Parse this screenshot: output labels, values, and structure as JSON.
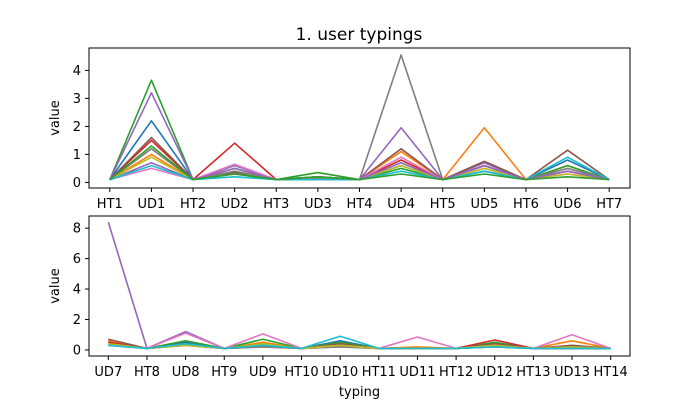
{
  "figure": {
    "title": "1. user typings"
  },
  "chart_data": [
    {
      "type": "line",
      "title": "1. user typings",
      "xlabel": "",
      "ylabel": "value",
      "ylim": [
        -0.2,
        4.8
      ],
      "yticks": [
        0,
        1,
        2,
        3,
        4
      ],
      "categories": [
        "HT1",
        "UD1",
        "HT2",
        "UD2",
        "HT3",
        "UD3",
        "HT4",
        "UD4",
        "HT5",
        "UD5",
        "HT6",
        "UD6",
        "HT7"
      ],
      "series": [
        {
          "color": "#1f77b4",
          "values": [
            0.1,
            2.2,
            0.1,
            0.3,
            0.1,
            0.1,
            0.1,
            0.6,
            0.1,
            0.4,
            0.1,
            0.8,
            0.1
          ]
        },
        {
          "color": "#ff7f0e",
          "values": [
            0.1,
            1.0,
            0.1,
            0.4,
            0.1,
            0.2,
            0.1,
            1.1,
            0.1,
            1.95,
            0.1,
            0.6,
            0.1
          ]
        },
        {
          "color": "#2ca02c",
          "values": [
            0.1,
            3.65,
            0.1,
            0.5,
            0.1,
            0.35,
            0.1,
            0.5,
            0.1,
            0.6,
            0.1,
            0.6,
            0.1
          ]
        },
        {
          "color": "#d62728",
          "values": [
            0.1,
            1.5,
            0.1,
            1.4,
            0.1,
            0.2,
            0.1,
            0.8,
            0.1,
            0.6,
            0.1,
            0.4,
            0.1
          ]
        },
        {
          "color": "#9467bd",
          "values": [
            0.1,
            0.7,
            0.1,
            0.6,
            0.1,
            0.1,
            0.1,
            1.95,
            0.1,
            0.7,
            0.1,
            0.5,
            0.1
          ]
        },
        {
          "color": "#8c564b",
          "values": [
            0.1,
            1.6,
            0.1,
            0.35,
            0.1,
            0.15,
            0.1,
            1.2,
            0.1,
            0.75,
            0.1,
            1.15,
            0.1
          ]
        },
        {
          "color": "#e377c2",
          "values": [
            0.1,
            0.5,
            0.1,
            0.65,
            0.1,
            0.1,
            0.1,
            0.9,
            0.1,
            0.5,
            0.1,
            0.3,
            0.1
          ]
        },
        {
          "color": "#7f7f7f",
          "values": [
            0.1,
            1.2,
            0.1,
            0.4,
            0.1,
            0.15,
            0.1,
            4.55,
            0.1,
            0.6,
            0.1,
            0.5,
            0.1
          ]
        },
        {
          "color": "#bcbd22",
          "values": [
            0.1,
            0.9,
            0.1,
            0.3,
            0.1,
            0.1,
            0.1,
            0.6,
            0.1,
            0.5,
            0.1,
            0.3,
            0.1
          ]
        },
        {
          "color": "#17becf",
          "values": [
            0.1,
            0.6,
            0.1,
            0.2,
            0.1,
            0.1,
            0.1,
            0.4,
            0.1,
            0.4,
            0.1,
            0.9,
            0.1
          ]
        },
        {
          "color": "#9467bd",
          "values": [
            0.1,
            3.2,
            0.1,
            0.5,
            0.1,
            0.2,
            0.1,
            0.7,
            0.1,
            0.6,
            0.1,
            0.4,
            0.1
          ]
        },
        {
          "color": "#2ca02c",
          "values": [
            0.1,
            1.3,
            0.1,
            0.3,
            0.1,
            0.2,
            0.1,
            0.3,
            0.1,
            0.3,
            0.1,
            0.2,
            0.1
          ]
        }
      ]
    },
    {
      "type": "line",
      "title": "",
      "xlabel": "typing",
      "ylabel": "value",
      "ylim": [
        -0.4,
        8.8
      ],
      "yticks": [
        0,
        2,
        4,
        6,
        8
      ],
      "categories": [
        "UD7",
        "HT8",
        "UD8",
        "HT9",
        "UD9",
        "HT10",
        "UD10",
        "HT11",
        "UD11",
        "HT12",
        "UD12",
        "HT13",
        "UD13",
        "HT14"
      ],
      "series": [
        {
          "color": "#1f77b4",
          "values": [
            0.4,
            0.1,
            0.5,
            0.1,
            0.3,
            0.1,
            0.6,
            0.1,
            0.1,
            0.1,
            0.3,
            0.1,
            0.2,
            0.1
          ]
        },
        {
          "color": "#ff7f0e",
          "values": [
            0.6,
            0.1,
            0.4,
            0.1,
            0.5,
            0.1,
            0.4,
            0.1,
            0.2,
            0.1,
            0.4,
            0.1,
            0.6,
            0.1
          ]
        },
        {
          "color": "#2ca02c",
          "values": [
            0.5,
            0.1,
            0.6,
            0.1,
            0.7,
            0.1,
            0.5,
            0.1,
            0.1,
            0.1,
            0.5,
            0.1,
            0.1,
            0.1
          ]
        },
        {
          "color": "#d62728",
          "values": [
            0.5,
            0.1,
            0.3,
            0.1,
            0.2,
            0.1,
            0.3,
            0.1,
            0.1,
            0.1,
            0.65,
            0.1,
            0.1,
            0.1
          ]
        },
        {
          "color": "#9467bd",
          "values": [
            8.4,
            0.1,
            1.2,
            0.1,
            0.3,
            0.1,
            0.2,
            0.1,
            0.1,
            0.1,
            0.2,
            0.1,
            0.2,
            0.1
          ]
        },
        {
          "color": "#8c564b",
          "values": [
            0.7,
            0.1,
            0.4,
            0.1,
            0.4,
            0.1,
            0.4,
            0.1,
            0.1,
            0.1,
            0.4,
            0.1,
            0.3,
            0.1
          ]
        },
        {
          "color": "#e377c2",
          "values": [
            0.4,
            0.1,
            1.1,
            0.1,
            1.05,
            0.1,
            0.3,
            0.1,
            0.85,
            0.1,
            0.3,
            0.1,
            1.0,
            0.1
          ]
        },
        {
          "color": "#7f7f7f",
          "values": [
            0.3,
            0.1,
            0.3,
            0.1,
            0.2,
            0.1,
            0.2,
            0.1,
            0.1,
            0.1,
            0.2,
            0.1,
            0.1,
            0.1
          ]
        },
        {
          "color": "#bcbd22",
          "values": [
            0.4,
            0.1,
            0.3,
            0.1,
            0.4,
            0.1,
            0.3,
            0.1,
            0.1,
            0.1,
            0.3,
            0.1,
            0.2,
            0.1
          ]
        },
        {
          "color": "#17becf",
          "values": [
            0.3,
            0.1,
            0.4,
            0.1,
            0.3,
            0.1,
            0.9,
            0.1,
            0.1,
            0.1,
            0.2,
            0.1,
            0.1,
            0.1
          ]
        }
      ]
    }
  ]
}
